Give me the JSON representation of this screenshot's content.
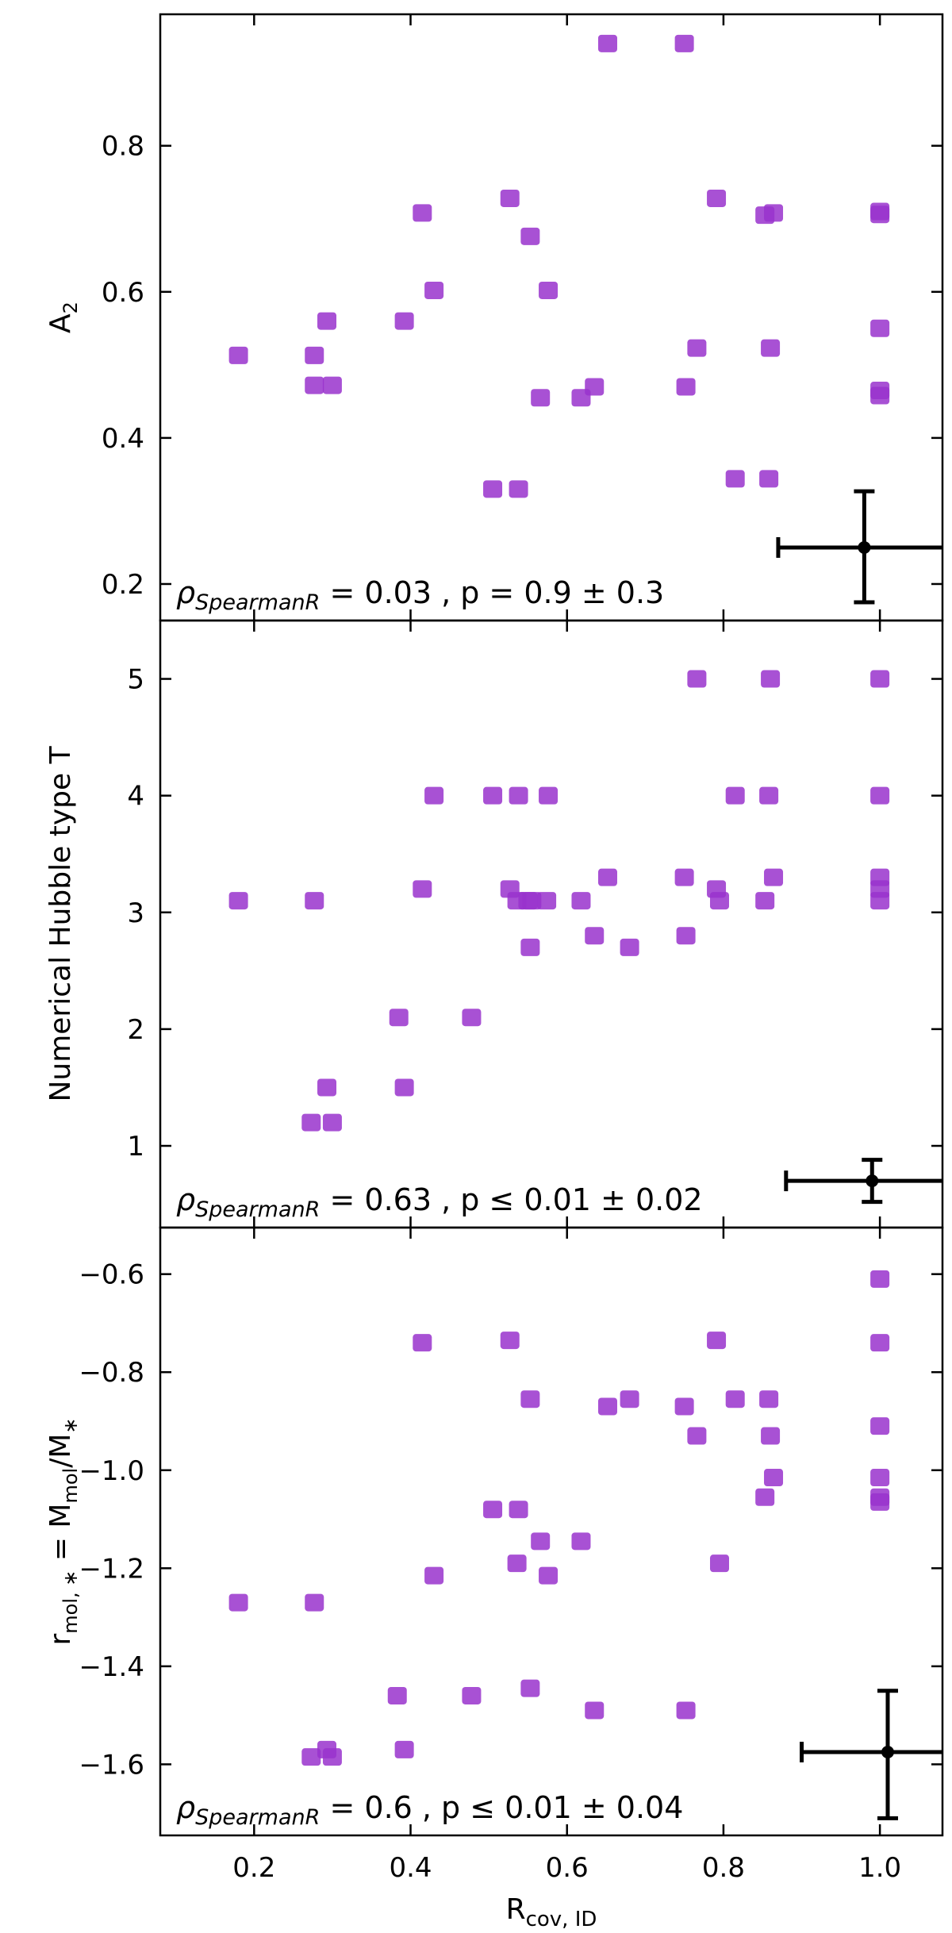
{
  "colors": {
    "marker": "#9932CC",
    "error_bar": "#000000",
    "axes": "#000000"
  },
  "chart_data": [
    {
      "type": "scatter",
      "ylabel": "A₂",
      "xlim": [
        0.08,
        1.08
      ],
      "ylim": [
        0.15,
        0.98
      ],
      "xticks": [
        0.2,
        0.4,
        0.6,
        0.8,
        1.0
      ],
      "yticks": [
        0.2,
        0.4,
        0.6,
        0.8
      ],
      "yticklabels": [
        "0.2",
        "0.4",
        "0.6",
        "0.8"
      ],
      "annotation": "ρSpearmanR = 0.03 , p = 0.9 ± 0.3",
      "error_bar": {
        "x": 0.98,
        "y": 0.25,
        "x_low": 0.87,
        "x_high": 1.08,
        "y_low": 0.175,
        "y_high": 0.327
      },
      "points": [
        [
          0.18,
          0.513
        ],
        [
          0.277,
          0.513
        ],
        [
          0.277,
          0.472
        ],
        [
          0.293,
          0.56
        ],
        [
          0.3,
          0.472
        ],
        [
          0.392,
          0.56
        ],
        [
          0.415,
          0.708
        ],
        [
          0.43,
          0.602
        ],
        [
          0.505,
          0.33
        ],
        [
          0.527,
          0.728
        ],
        [
          0.538,
          0.33
        ],
        [
          0.553,
          0.676
        ],
        [
          0.566,
          0.455
        ],
        [
          0.576,
          0.602
        ],
        [
          0.618,
          0.455
        ],
        [
          0.635,
          0.47
        ],
        [
          0.652,
          0.94
        ],
        [
          0.75,
          0.94
        ],
        [
          0.752,
          0.47
        ],
        [
          0.766,
          0.523
        ],
        [
          0.791,
          0.728
        ],
        [
          0.815,
          0.344
        ],
        [
          0.853,
          0.705
        ],
        [
          0.858,
          0.344
        ],
        [
          0.86,
          0.523
        ],
        [
          0.864,
          0.708
        ],
        [
          1.0,
          0.71
        ],
        [
          1.0,
          0.706
        ],
        [
          1.0,
          0.55
        ],
        [
          1.0,
          0.465
        ],
        [
          1.0,
          0.458
        ]
      ]
    },
    {
      "type": "scatter",
      "ylabel": "Numerical Hubble type T",
      "xlim": [
        0.08,
        1.08
      ],
      "ylim": [
        0.3,
        5.5
      ],
      "xticks": [
        0.2,
        0.4,
        0.6,
        0.8,
        1.0
      ],
      "yticks": [
        1,
        2,
        3,
        4,
        5
      ],
      "yticklabels": [
        "1",
        "2",
        "3",
        "4",
        "5"
      ],
      "annotation": "ρSpearmanR = 0.63 , p ≤ 0.01 ± 0.02",
      "error_bar": {
        "x": 0.99,
        "y": 0.7,
        "x_low": 0.88,
        "x_high": 1.08,
        "y_low": 0.52,
        "y_high": 0.88
      },
      "points": [
        [
          0.18,
          3.1
        ],
        [
          0.277,
          3.1
        ],
        [
          0.273,
          1.2
        ],
        [
          0.293,
          1.5
        ],
        [
          0.3,
          1.2
        ],
        [
          0.385,
          2.1
        ],
        [
          0.392,
          1.5
        ],
        [
          0.415,
          3.2
        ],
        [
          0.43,
          4.0
        ],
        [
          0.478,
          2.1
        ],
        [
          0.505,
          4.0
        ],
        [
          0.527,
          3.2
        ],
        [
          0.536,
          3.1
        ],
        [
          0.538,
          4.0
        ],
        [
          0.55,
          3.1
        ],
        [
          0.553,
          2.7
        ],
        [
          0.555,
          3.1
        ],
        [
          0.574,
          3.1
        ],
        [
          0.576,
          4.0
        ],
        [
          0.618,
          3.1
        ],
        [
          0.635,
          2.8
        ],
        [
          0.652,
          3.3
        ],
        [
          0.68,
          2.7
        ],
        [
          0.75,
          3.3
        ],
        [
          0.752,
          2.8
        ],
        [
          0.766,
          5.0
        ],
        [
          0.791,
          3.2
        ],
        [
          0.795,
          3.1
        ],
        [
          0.815,
          4.0
        ],
        [
          0.853,
          3.1
        ],
        [
          0.858,
          4.0
        ],
        [
          0.86,
          5.0
        ],
        [
          0.864,
          3.3
        ],
        [
          1.0,
          5.0
        ],
        [
          1.0,
          4.0
        ],
        [
          1.0,
          3.3
        ],
        [
          1.0,
          3.2
        ],
        [
          1.0,
          3.1
        ]
      ]
    },
    {
      "type": "scatter",
      "ylabel": "r_mol,* = M_mol/M_*",
      "xlabel": "R_cov, ID",
      "xlim": [
        0.08,
        1.08
      ],
      "ylim": [
        -1.745,
        -0.505
      ],
      "xticks": [
        0.2,
        0.4,
        0.6,
        0.8,
        1.0
      ],
      "xticklabels": [
        "0.2",
        "0.4",
        "0.6",
        "0.8",
        "1.0"
      ],
      "yticks": [
        -1.6,
        -1.4,
        -1.2,
        -1.0,
        -0.8,
        -0.6
      ],
      "yticklabels": [
        "−1.6",
        "−1.4",
        "−1.2",
        "−1.0",
        "−0.8",
        "−0.6"
      ],
      "annotation": "ρSpearmanR = 0.6 , p ≤ 0.01 ± 0.04",
      "error_bar": {
        "x": 1.01,
        "y": -1.575,
        "x_low": 0.9,
        "x_high": 1.08,
        "y_low": -1.71,
        "y_high": -1.45
      },
      "points": [
        [
          0.18,
          -1.27
        ],
        [
          0.277,
          -1.27
        ],
        [
          0.273,
          -1.585
        ],
        [
          0.293,
          -1.57
        ],
        [
          0.3,
          -1.585
        ],
        [
          0.383,
          -1.46
        ],
        [
          0.392,
          -1.57
        ],
        [
          0.415,
          -0.74
        ],
        [
          0.43,
          -1.215
        ],
        [
          0.478,
          -1.46
        ],
        [
          0.505,
          -1.08
        ],
        [
          0.527,
          -0.735
        ],
        [
          0.536,
          -1.19
        ],
        [
          0.538,
          -1.08
        ],
        [
          0.553,
          -0.855
        ],
        [
          0.553,
          -1.445
        ],
        [
          0.566,
          -1.145
        ],
        [
          0.576,
          -1.215
        ],
        [
          0.618,
          -1.145
        ],
        [
          0.635,
          -1.49
        ],
        [
          0.652,
          -0.87
        ],
        [
          0.68,
          -0.855
        ],
        [
          0.75,
          -0.87
        ],
        [
          0.752,
          -1.49
        ],
        [
          0.766,
          -0.93
        ],
        [
          0.791,
          -0.735
        ],
        [
          0.795,
          -1.19
        ],
        [
          0.815,
          -0.855
        ],
        [
          0.853,
          -1.055
        ],
        [
          0.858,
          -0.855
        ],
        [
          0.86,
          -0.93
        ],
        [
          0.864,
          -1.015
        ],
        [
          1.0,
          -0.61
        ],
        [
          1.0,
          -0.74
        ],
        [
          1.0,
          -0.91
        ],
        [
          1.0,
          -1.015
        ],
        [
          1.0,
          -1.055
        ],
        [
          1.0,
          -1.065
        ]
      ]
    }
  ]
}
